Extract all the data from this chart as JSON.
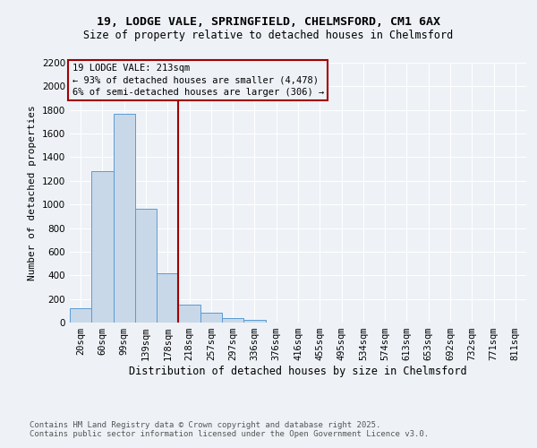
{
  "title1": "19, LODGE VALE, SPRINGFIELD, CHELMSFORD, CM1 6AX",
  "title2": "Size of property relative to detached houses in Chelmsford",
  "xlabel": "Distribution of detached houses by size in Chelmsford",
  "ylabel": "Number of detached properties",
  "categories": [
    "20sqm",
    "60sqm",
    "99sqm",
    "139sqm",
    "178sqm",
    "218sqm",
    "257sqm",
    "297sqm",
    "336sqm",
    "376sqm",
    "416sqm",
    "455sqm",
    "495sqm",
    "534sqm",
    "574sqm",
    "613sqm",
    "653sqm",
    "692sqm",
    "732sqm",
    "771sqm",
    "811sqm"
  ],
  "values": [
    120,
    1280,
    1770,
    960,
    420,
    150,
    80,
    40,
    20,
    0,
    0,
    0,
    0,
    0,
    0,
    0,
    0,
    0,
    0,
    0,
    0
  ],
  "bar_color": "#c8d8e8",
  "bar_edge_color": "#5b9bd5",
  "vline_x_index": 5,
  "vline_color": "#a00000",
  "annotation_title": "19 LODGE VALE: 213sqm",
  "annotation_line1": "← 93% of detached houses are smaller (4,478)",
  "annotation_line2": "6% of semi-detached houses are larger (306) →",
  "annotation_box_color": "#a00000",
  "ylim": [
    0,
    2200
  ],
  "yticks": [
    0,
    200,
    400,
    600,
    800,
    1000,
    1200,
    1400,
    1600,
    1800,
    2000,
    2200
  ],
  "footer1": "Contains HM Land Registry data © Crown copyright and database right 2025.",
  "footer2": "Contains public sector information licensed under the Open Government Licence v3.0.",
  "background_color": "#eef2f7",
  "grid_color": "#ffffff",
  "title1_fontsize": 9.5,
  "title2_fontsize": 8.5,
  "axis_tick_fontsize": 7.5,
  "ylabel_fontsize": 8,
  "xlabel_fontsize": 8.5,
  "footer_fontsize": 6.5
}
